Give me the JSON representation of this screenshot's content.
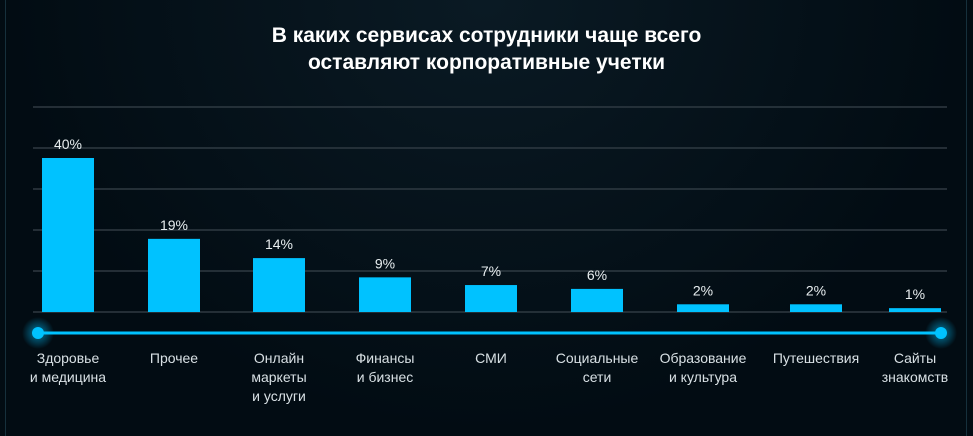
{
  "chart_data": {
    "type": "bar",
    "title_lines": [
      "В каких сервисах сотрудники чаще всего",
      "оставляют корпоративные учетки"
    ],
    "categories": [
      [
        "Здоровье",
        "и медицина"
      ],
      [
        "Прочее"
      ],
      [
        "Онлайн",
        "маркеты",
        "и услуги"
      ],
      [
        "Финансы",
        "и бизнес"
      ],
      [
        "СМИ"
      ],
      [
        "Социальные",
        "сети"
      ],
      [
        "Образование",
        "и культура"
      ],
      [
        "Путешествия"
      ],
      [
        "Сайты",
        "знакомств"
      ]
    ],
    "values": [
      40,
      19,
      14,
      9,
      7,
      6,
      2,
      2,
      1
    ],
    "value_labels": [
      "40%",
      "19%",
      "14%",
      "9%",
      "7%",
      "6%",
      "2%",
      "2%",
      "1%"
    ],
    "unit": "%",
    "ylim": [
      0,
      50
    ],
    "grid": true,
    "bar_color": "#00c2ff"
  }
}
